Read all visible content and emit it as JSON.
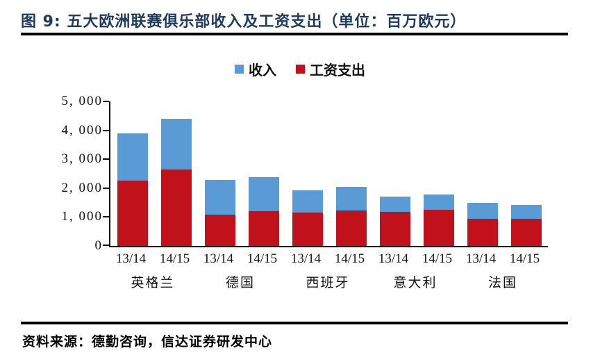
{
  "figure": {
    "title": "图 9:  五大欧洲联赛俱乐部收入及工资支出（单位：百万欧元）",
    "source": "资料来源：德勤咨询，信达证券研发中心"
  },
  "legend": [
    {
      "label": "收入",
      "color": "#5B9BD5"
    },
    {
      "label": "工资支出",
      "color": "#C1121C"
    }
  ],
  "colors": {
    "income_blue": "#5B9BD5",
    "wage_red": "#C1121C",
    "title_navy": "#1F3A5F",
    "rule_black": "#000000"
  },
  "chart_data": {
    "type": "bar",
    "variant": "overlay",
    "note": "红色工资支出柱叠加在蓝色收入柱之前；总柱高=收入，红色部分=工资支出",
    "title": "五大欧洲联赛俱乐部收入及工资支出",
    "unit": "百万欧元",
    "group_labels": [
      "英格兰",
      "德国",
      "西班牙",
      "意大利",
      "法国"
    ],
    "x_labels": [
      "13/14",
      "14/15",
      "13/14",
      "14/15",
      "13/14",
      "14/15",
      "13/14",
      "14/15",
      "13/14",
      "14/15"
    ],
    "series": [
      {
        "name": "收入",
        "color": "#5B9BD5",
        "values": [
          3900,
          4400,
          2275,
          2390,
          1935,
          2055,
          1700,
          1790,
          1480,
          1410
        ]
      },
      {
        "name": "工资支出",
        "color": "#C1121C",
        "values": [
          2270,
          2650,
          1070,
          1200,
          1160,
          1230,
          1185,
          1255,
          930,
          930
        ]
      }
    ],
    "xlabel": "",
    "ylabel": "",
    "ylim": [
      0,
      5000
    ],
    "ytick_step": 1000,
    "ytick_labels": [
      "0",
      "1, 000",
      "2, 000",
      "3, 000",
      "4, 000",
      "5, 000"
    ],
    "grid": false,
    "legend_position": "top"
  }
}
